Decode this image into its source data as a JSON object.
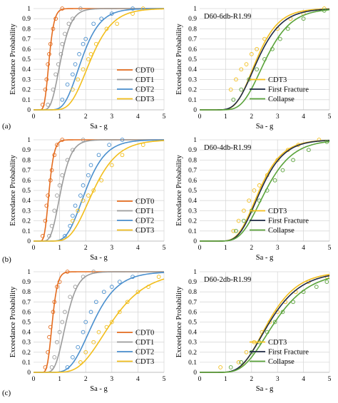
{
  "row_labels": [
    "(a)",
    "(b)",
    "(c)"
  ],
  "colors": {
    "CDT0": "#E46C1F",
    "CDT1": "#9B9B9B",
    "CDT2": "#4A8FCE",
    "CDT3": "#F2BE1C",
    "First Fracture": "#1F2A44",
    "Collapse": "#5AA33A"
  },
  "chart_data": [
    {
      "type": "line",
      "row": "(a)",
      "title": "",
      "xlabel": "Sa - g",
      "ylabel": "Exceedance Probability",
      "xlim": [
        0,
        5
      ],
      "ylim": [
        0,
        1
      ],
      "xticks": [
        "0",
        "1",
        "2",
        "3",
        "4",
        "5"
      ],
      "yticks": [
        "0",
        "0.1",
        "0.2",
        "0.3",
        "0.4",
        "0.5",
        "0.6",
        "0.7",
        "0.8",
        "0.9",
        "1"
      ],
      "grid": true,
      "legend_position": "bottom-right",
      "series": [
        {
          "name": "CDT0",
          "median": 0.6,
          "beta": 0.25,
          "points": [
            [
              0.35,
              0.05
            ],
            [
              0.45,
              0.2
            ],
            [
              0.5,
              0.3
            ],
            [
              0.55,
              0.45
            ],
            [
              0.6,
              0.55
            ],
            [
              0.65,
              0.65
            ],
            [
              0.75,
              0.8
            ],
            [
              0.85,
              0.9
            ],
            [
              1.1,
              1.0
            ]
          ]
        },
        {
          "name": "CDT1",
          "median": 1.05,
          "beta": 0.3,
          "points": [
            [
              0.55,
              0.05
            ],
            [
              0.75,
              0.2
            ],
            [
              0.85,
              0.35
            ],
            [
              0.95,
              0.45
            ],
            [
              1.05,
              0.55
            ],
            [
              1.1,
              0.65
            ],
            [
              1.2,
              0.75
            ],
            [
              1.35,
              0.85
            ],
            [
              1.5,
              0.9
            ],
            [
              1.8,
              1.0
            ]
          ]
        },
        {
          "name": "CDT2",
          "median": 1.85,
          "beta": 0.3,
          "points": [
            [
              1.1,
              0.1
            ],
            [
              1.3,
              0.25
            ],
            [
              1.5,
              0.35
            ],
            [
              1.6,
              0.45
            ],
            [
              1.75,
              0.55
            ],
            [
              1.9,
              0.65
            ],
            [
              2.0,
              0.7
            ],
            [
              2.3,
              0.85
            ],
            [
              2.6,
              0.9
            ],
            [
              3.0,
              0.95
            ],
            [
              3.8,
              1.0
            ]
          ]
        },
        {
          "name": "CDT3",
          "median": 2.2,
          "beta": 0.3,
          "points": [
            [
              1.5,
              0.2
            ],
            [
              1.7,
              0.3
            ],
            [
              1.9,
              0.4
            ],
            [
              2.1,
              0.5
            ],
            [
              2.2,
              0.55
            ],
            [
              2.4,
              0.65
            ],
            [
              2.8,
              0.8
            ],
            [
              3.2,
              0.85
            ],
            [
              3.8,
              0.95
            ],
            [
              4.2,
              1.0
            ]
          ]
        }
      ]
    },
    {
      "type": "line",
      "row": "(a)",
      "title": "D60-6db-R1.99",
      "xlabel": "Sa - g",
      "ylabel": "Exceedance Probability",
      "xlim": [
        0,
        5
      ],
      "ylim": [
        0,
        1
      ],
      "xticks": [
        "0",
        "1",
        "2",
        "3",
        "4",
        "5"
      ],
      "yticks": [
        "0",
        "0.1",
        "0.2",
        "0.3",
        "0.4",
        "0.5",
        "0.6",
        "0.7",
        "0.8",
        "0.9",
        "1"
      ],
      "grid": true,
      "legend_position": "bottom-right",
      "series": [
        {
          "name": "CDT3",
          "median": 2.2,
          "beta": 0.3,
          "points": [
            [
              1.2,
              0.2
            ],
            [
              1.4,
              0.3
            ],
            [
              1.6,
              0.4
            ],
            [
              1.8,
              0.45
            ],
            [
              2.0,
              0.55
            ],
            [
              2.2,
              0.6
            ],
            [
              2.5,
              0.7
            ],
            [
              3.0,
              0.8
            ],
            [
              3.5,
              0.9
            ],
            [
              4.0,
              0.95
            ],
            [
              4.8,
              1.0
            ]
          ]
        },
        {
          "name": "First Fracture",
          "median": 2.25,
          "beta": 0.32,
          "points": []
        },
        {
          "name": "Collapse",
          "median": 2.55,
          "beta": 0.3,
          "points": [
            [
              1.3,
              0.1
            ],
            [
              1.6,
              0.2
            ],
            [
              1.9,
              0.3
            ],
            [
              2.2,
              0.4
            ],
            [
              2.5,
              0.5
            ],
            [
              2.8,
              0.6
            ],
            [
              3.1,
              0.7
            ],
            [
              3.4,
              0.8
            ],
            [
              4.0,
              0.9
            ],
            [
              4.8,
              0.98
            ]
          ]
        }
      ]
    },
    {
      "type": "line",
      "row": "(b)",
      "title": "",
      "xlabel": "Sa - g",
      "ylabel": "Exceedance Probability",
      "xlim": [
        0,
        5
      ],
      "ylim": [
        0,
        1
      ],
      "xticks": [
        "0",
        "1",
        "2",
        "3",
        "4",
        "5"
      ],
      "yticks": [
        "0",
        "0.1",
        "0.2",
        "0.3",
        "0.4",
        "0.5",
        "0.6",
        "0.7",
        "0.8",
        "0.9",
        "1"
      ],
      "grid": true,
      "legend_position": "bottom-right",
      "series": [
        {
          "name": "CDT0",
          "median": 0.6,
          "beta": 0.25,
          "points": [
            [
              0.35,
              0.05
            ],
            [
              0.45,
              0.2
            ],
            [
              0.5,
              0.35
            ],
            [
              0.55,
              0.45
            ],
            [
              0.65,
              0.6
            ],
            [
              0.7,
              0.7
            ],
            [
              0.8,
              0.85
            ],
            [
              0.9,
              0.95
            ],
            [
              1.1,
              1.0
            ]
          ]
        },
        {
          "name": "CDT1",
          "median": 1.05,
          "beta": 0.3,
          "points": [
            [
              0.6,
              0.05
            ],
            [
              0.7,
              0.15
            ],
            [
              0.8,
              0.3
            ],
            [
              0.9,
              0.45
            ],
            [
              1.0,
              0.55
            ],
            [
              1.1,
              0.65
            ],
            [
              1.3,
              0.8
            ],
            [
              1.5,
              0.9
            ],
            [
              1.9,
              1.0
            ]
          ]
        },
        {
          "name": "CDT2",
          "median": 2.0,
          "beta": 0.3,
          "points": [
            [
              1.2,
              0.05
            ],
            [
              1.4,
              0.15
            ],
            [
              1.5,
              0.25
            ],
            [
              1.6,
              0.35
            ],
            [
              1.8,
              0.45
            ],
            [
              1.9,
              0.55
            ],
            [
              2.1,
              0.65
            ],
            [
              2.2,
              0.75
            ],
            [
              2.5,
              0.85
            ],
            [
              2.9,
              0.95
            ],
            [
              3.4,
              1.0
            ]
          ]
        },
        {
          "name": "CDT3",
          "median": 2.3,
          "beta": 0.32,
          "points": [
            [
              1.5,
              0.2
            ],
            [
              1.7,
              0.3
            ],
            [
              1.9,
              0.4
            ],
            [
              2.1,
              0.45
            ],
            [
              2.3,
              0.5
            ],
            [
              2.6,
              0.6
            ],
            [
              3.0,
              0.75
            ],
            [
              3.4,
              0.85
            ],
            [
              4.2,
              0.95
            ]
          ]
        }
      ]
    },
    {
      "type": "line",
      "row": "(b)",
      "title": "D60-4db-R1.99",
      "xlabel": "Sa - g",
      "ylabel": "Exceedance Probability",
      "xlim": [
        0,
        5
      ],
      "ylim": [
        0,
        1
      ],
      "xticks": [
        "0",
        "1",
        "2",
        "3",
        "4",
        "5"
      ],
      "yticks": [
        "0",
        "0.1",
        "0.2",
        "0.3",
        "0.4",
        "0.5",
        "0.6",
        "0.7",
        "0.8",
        "0.9",
        "1"
      ],
      "grid": true,
      "legend_position": "bottom-right",
      "series": [
        {
          "name": "CDT3",
          "median": 2.3,
          "beta": 0.3,
          "points": [
            [
              1.3,
              0.1
            ],
            [
              1.5,
              0.2
            ],
            [
              1.7,
              0.3
            ],
            [
              1.9,
              0.4
            ],
            [
              2.1,
              0.5
            ],
            [
              2.3,
              0.55
            ],
            [
              2.6,
              0.65
            ],
            [
              3.0,
              0.8
            ],
            [
              3.4,
              0.9
            ],
            [
              3.8,
              0.95
            ],
            [
              4.6,
              1.0
            ]
          ]
        },
        {
          "name": "First Fracture",
          "median": 2.35,
          "beta": 0.3,
          "points": []
        },
        {
          "name": "Collapse",
          "median": 2.55,
          "beta": 0.32,
          "points": [
            [
              1.4,
              0.1
            ],
            [
              1.7,
              0.2
            ],
            [
              2.0,
              0.3
            ],
            [
              2.3,
              0.4
            ],
            [
              2.6,
              0.5
            ],
            [
              2.9,
              0.6
            ],
            [
              3.2,
              0.7
            ],
            [
              3.6,
              0.8
            ],
            [
              4.2,
              0.9
            ],
            [
              4.9,
              0.98
            ]
          ]
        }
      ]
    },
    {
      "type": "line",
      "row": "(c)",
      "title": "",
      "xlabel": "Sa - g",
      "ylabel": "Exceedance Probability",
      "xlim": [
        0,
        5
      ],
      "ylim": [
        0,
        1
      ],
      "xticks": [
        "0",
        "1",
        "2",
        "3",
        "4",
        "5"
      ],
      "yticks": [
        "0",
        "0.1",
        "0.2",
        "0.3",
        "0.4",
        "0.5",
        "0.6",
        "0.7",
        "0.8",
        "0.9",
        "1"
      ],
      "grid": true,
      "legend_position": "bottom-right",
      "series": [
        {
          "name": "CDT0",
          "median": 0.72,
          "beta": 0.22,
          "points": [
            [
              0.45,
              0.05
            ],
            [
              0.55,
              0.2
            ],
            [
              0.6,
              0.35
            ],
            [
              0.65,
              0.45
            ],
            [
              0.75,
              0.6
            ],
            [
              0.8,
              0.7
            ],
            [
              0.9,
              0.85
            ],
            [
              1.0,
              0.9
            ],
            [
              1.3,
              1.0
            ]
          ]
        },
        {
          "name": "CDT1",
          "median": 1.25,
          "beta": 0.28,
          "points": [
            [
              0.7,
              0.05
            ],
            [
              0.8,
              0.15
            ],
            [
              0.9,
              0.3
            ],
            [
              1.0,
              0.4
            ],
            [
              1.1,
              0.5
            ],
            [
              1.2,
              0.6
            ],
            [
              1.4,
              0.75
            ],
            [
              1.6,
              0.85
            ],
            [
              1.9,
              0.95
            ],
            [
              2.3,
              1.0
            ]
          ]
        },
        {
          "name": "CDT2",
          "median": 2.3,
          "beta": 0.32,
          "points": [
            [
              1.3,
              0.05
            ],
            [
              1.5,
              0.15
            ],
            [
              1.7,
              0.25
            ],
            [
              1.9,
              0.4
            ],
            [
              2.0,
              0.5
            ],
            [
              2.2,
              0.6
            ],
            [
              2.4,
              0.7
            ],
            [
              2.7,
              0.8
            ],
            [
              3.0,
              0.85
            ],
            [
              3.3,
              0.9
            ],
            [
              3.8,
              0.95
            ]
          ]
        },
        {
          "name": "CDT3",
          "median": 3.0,
          "beta": 0.35,
          "points": [
            [
              1.8,
              0.1
            ],
            [
              2.0,
              0.2
            ],
            [
              2.3,
              0.3
            ],
            [
              2.5,
              0.4
            ],
            [
              2.8,
              0.45
            ],
            [
              3.0,
              0.5
            ],
            [
              3.3,
              0.6
            ],
            [
              3.6,
              0.7
            ],
            [
              4.0,
              0.8
            ],
            [
              4.4,
              0.85
            ],
            [
              4.8,
              0.95
            ]
          ]
        }
      ]
    },
    {
      "type": "line",
      "row": "(c)",
      "title": "D60-2db-R1.99",
      "xlabel": "Sa - g",
      "ylabel": "Exceedance Probability",
      "xlim": [
        0,
        5
      ],
      "ylim": [
        0,
        1
      ],
      "xticks": [
        "0",
        "1",
        "2",
        "3",
        "4",
        "5"
      ],
      "yticks": [
        "0",
        "0.1",
        "0.2",
        "0.3",
        "0.4",
        "0.5",
        "0.6",
        "0.7",
        "0.8",
        "0.9",
        "1"
      ],
      "grid": true,
      "legend_position": "bottom-right",
      "series": [
        {
          "name": "CDT3",
          "median": 2.65,
          "beta": 0.33,
          "points": [
            [
              0.8,
              0.05
            ],
            [
              1.5,
              0.1
            ],
            [
              1.8,
              0.2
            ],
            [
              2.1,
              0.3
            ],
            [
              2.4,
              0.4
            ],
            [
              2.7,
              0.5
            ],
            [
              3.0,
              0.6
            ],
            [
              3.3,
              0.7
            ],
            [
              3.7,
              0.8
            ],
            [
              4.2,
              0.9
            ],
            [
              4.9,
              0.95
            ]
          ]
        },
        {
          "name": "First Fracture",
          "median": 2.7,
          "beta": 0.35,
          "points": []
        },
        {
          "name": "Collapse",
          "median": 2.9,
          "beta": 0.36,
          "points": [
            [
              1.2,
              0.05
            ],
            [
              1.6,
              0.1
            ],
            [
              2.0,
              0.2
            ],
            [
              2.3,
              0.3
            ],
            [
              2.6,
              0.4
            ],
            [
              2.9,
              0.5
            ],
            [
              3.2,
              0.6
            ],
            [
              3.6,
              0.7
            ],
            [
              4.0,
              0.8
            ],
            [
              4.5,
              0.85
            ],
            [
              4.9,
              0.9
            ]
          ]
        }
      ]
    }
  ]
}
